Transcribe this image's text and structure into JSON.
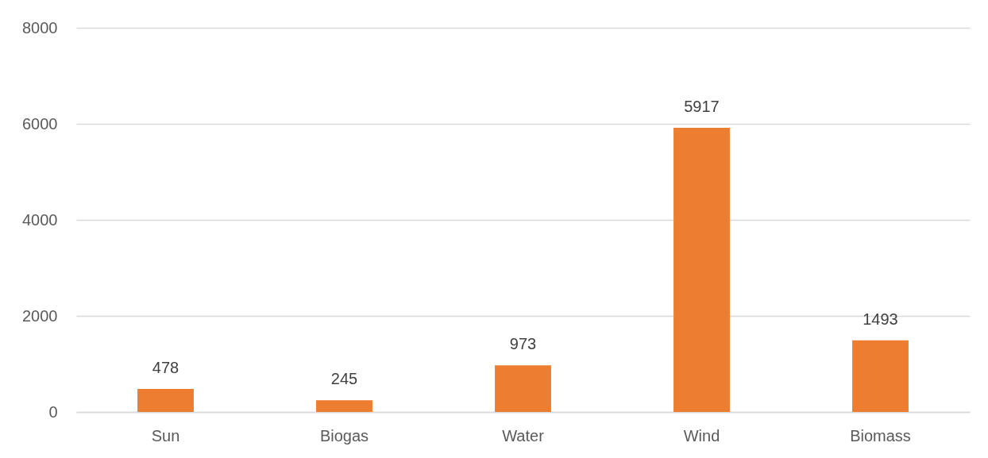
{
  "chart_data": {
    "type": "bar",
    "categories": [
      "Sun",
      "Biogas",
      "Water",
      "Wind",
      "Biomass"
    ],
    "values": [
      478,
      245,
      973,
      5917,
      1493
    ],
    "color": "#ed7d31",
    "ylim": [
      0,
      8000
    ],
    "yticks": [
      0,
      2000,
      4000,
      6000,
      8000
    ],
    "grid": "y",
    "data_labels": true
  }
}
